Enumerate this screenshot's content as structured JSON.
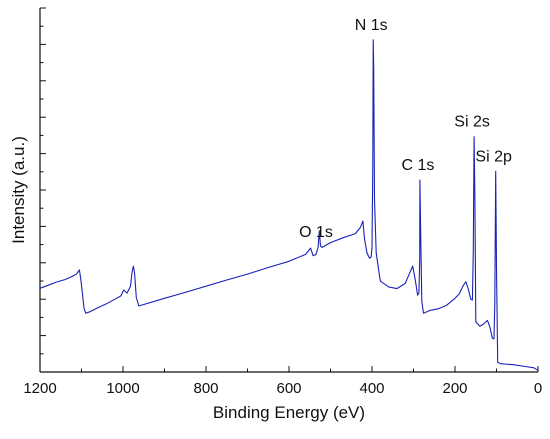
{
  "chart_data": {
    "type": "line",
    "title": "",
    "xlabel": "Binding Energy (eV)",
    "ylabel": "Intensity (a.u.)",
    "xlim": [
      1200,
      0
    ],
    "x_reversed": true,
    "ylim": [
      0,
      100
    ],
    "y_tick_labels_shown": false,
    "x_ticks": [
      1200,
      1000,
      800,
      600,
      400,
      200,
      0
    ],
    "x_tick_labels": [
      "1200",
      "1000",
      "800",
      "600",
      "400",
      "200",
      "0"
    ],
    "line_color": "#1a22b8",
    "series": [
      {
        "values": [
          [
            1200,
            24.2
          ],
          [
            1180,
            25.1
          ],
          [
            1160,
            26.0
          ],
          [
            1140,
            26.7
          ],
          [
            1125,
            27.5
          ],
          [
            1112,
            28.3
          ],
          [
            1105,
            29.5
          ],
          [
            1102,
            27.0
          ],
          [
            1098,
            23.0
          ],
          [
            1094,
            18.5
          ],
          [
            1090,
            17.0
          ],
          [
            1080,
            17.4
          ],
          [
            1060,
            18.6
          ],
          [
            1040,
            19.7
          ],
          [
            1020,
            21.0
          ],
          [
            1005,
            22.0
          ],
          [
            998,
            23.7
          ],
          [
            990,
            22.8
          ],
          [
            982,
            24.8
          ],
          [
            978,
            29.0
          ],
          [
            975,
            30.6
          ],
          [
            972,
            28.5
          ],
          [
            968,
            21.5
          ],
          [
            962,
            19.1
          ],
          [
            950,
            19.5
          ],
          [
            900,
            21.3
          ],
          [
            850,
            23.0
          ],
          [
            800,
            24.8
          ],
          [
            750,
            26.6
          ],
          [
            700,
            28.3
          ],
          [
            650,
            30.2
          ],
          [
            600,
            32.0
          ],
          [
            560,
            34.0
          ],
          [
            548,
            35.8
          ],
          [
            542,
            33.6
          ],
          [
            535,
            34.0
          ],
          [
            530,
            36.1
          ],
          [
            527,
            40.8
          ],
          [
            524,
            36.4
          ],
          [
            520,
            36.0
          ],
          [
            500,
            37.4
          ],
          [
            470,
            38.8
          ],
          [
            440,
            40.0
          ],
          [
            428,
            41.8
          ],
          [
            422,
            43.6
          ],
          [
            418,
            38.5
          ],
          [
            412,
            34.4
          ],
          [
            406,
            32.9
          ],
          [
            402,
            33.3
          ],
          [
            400,
            36.0
          ],
          [
            398,
            60.0
          ],
          [
            397,
            96.0
          ],
          [
            396,
            88.0
          ],
          [
            394,
            50.0
          ],
          [
            390,
            34.4
          ],
          [
            380,
            26.3
          ],
          [
            360,
            24.6
          ],
          [
            340,
            24.1
          ],
          [
            320,
            25.6
          ],
          [
            310,
            28.4
          ],
          [
            302,
            30.6
          ],
          [
            296,
            26.7
          ],
          [
            290,
            22.2
          ],
          [
            287,
            22.8
          ],
          [
            285,
            32.0
          ],
          [
            284.5,
            55.5
          ],
          [
            283,
            42.0
          ],
          [
            280,
            20.5
          ],
          [
            276,
            17.0
          ],
          [
            260,
            17.8
          ],
          [
            240,
            18.3
          ],
          [
            220,
            19.3
          ],
          [
            200,
            21.3
          ],
          [
            190,
            22.5
          ],
          [
            180,
            25.0
          ],
          [
            174,
            26.1
          ],
          [
            168,
            24.0
          ],
          [
            162,
            21.0
          ],
          [
            158,
            20.8
          ],
          [
            156,
            35.0
          ],
          [
            154,
            68.0
          ],
          [
            152,
            50.0
          ],
          [
            150,
            14.5
          ],
          [
            140,
            13.2
          ],
          [
            130,
            14.0
          ],
          [
            122,
            14.9
          ],
          [
            116,
            13.0
          ],
          [
            110,
            9.7
          ],
          [
            106,
            9.6
          ],
          [
            104,
            20.0
          ],
          [
            102,
            58.0
          ],
          [
            100,
            30.0
          ],
          [
            97,
            2.8
          ],
          [
            90,
            2.4
          ],
          [
            60,
            2.1
          ],
          [
            30,
            1.6
          ],
          [
            10,
            1.2
          ],
          [
            0,
            0.5
          ]
        ]
      }
    ],
    "annotations": [
      {
        "text": "O 1s",
        "x": 530
      },
      {
        "text": "N 1s",
        "x": 397
      },
      {
        "text": "C 1s",
        "x": 284.5
      },
      {
        "text": "Si 2s",
        "x": 154
      },
      {
        "text": "Si 2p",
        "x": 102
      }
    ]
  }
}
